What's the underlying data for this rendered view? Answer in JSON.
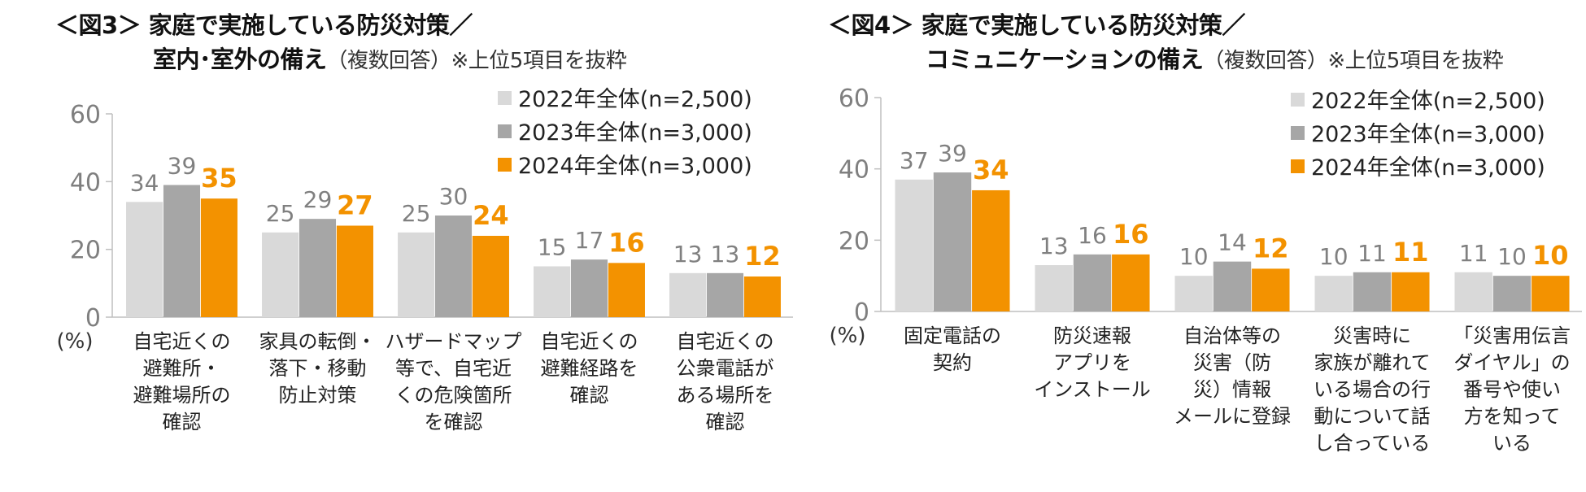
{
  "chart_data": [
    {
      "type": "bar",
      "title_line1": "＜図3＞ 家庭で実施している防災対策／",
      "title_line2": "室内･室外の備え",
      "title_note": "（複数回答）※上位5項目を抜粋",
      "unit_label": "(%)",
      "ylim": [
        0,
        60
      ],
      "yticks": [
        0,
        20,
        40,
        60
      ],
      "grid": false,
      "legend_position": "top-right",
      "categories": [
        [
          "自宅近くの",
          "避難所・",
          "避難場所の",
          "確認"
        ],
        [
          "家具の転倒・",
          "落下・移動",
          "防止対策"
        ],
        [
          "ハザードマップ",
          "等で、自宅近",
          "くの危険箇所",
          "を確認"
        ],
        [
          "自宅近くの",
          "避難経路を",
          "確認"
        ],
        [
          "自宅近くの",
          "公衆電話が",
          "ある場所を",
          "確認"
        ]
      ],
      "series": [
        {
          "name": "2022年全体(n=2,500)",
          "color": "#d9d9d9",
          "label_color": "#808080",
          "bold": false,
          "values": [
            34,
            25,
            25,
            15,
            13
          ]
        },
        {
          "name": "2023年全体(n=3,000)",
          "color": "#a6a6a6",
          "label_color": "#808080",
          "bold": false,
          "values": [
            39,
            29,
            30,
            17,
            13
          ]
        },
        {
          "name": "2024年全体(n=3,000)",
          "color": "#f39200",
          "label_color": "#f39200",
          "bold": true,
          "values": [
            35,
            27,
            24,
            16,
            12
          ]
        }
      ]
    },
    {
      "type": "bar",
      "title_line1": "＜図4＞ 家庭で実施している防災対策／",
      "title_line2": "コミュニケーションの備え",
      "title_note": "（複数回答）※上位5項目を抜粋",
      "unit_label": "(%)",
      "ylim": [
        0,
        60
      ],
      "yticks": [
        0,
        20,
        40,
        60
      ],
      "grid": false,
      "legend_position": "top-right",
      "categories": [
        [
          "固定電話の",
          "契約"
        ],
        [
          "防災速報",
          "アプリを",
          "インストール"
        ],
        [
          "自治体等の",
          "災害（防",
          "災）情報",
          "メールに登録"
        ],
        [
          "災害時に",
          "家族が離れて",
          "いる場合の行",
          "動について話",
          "し合っている"
        ],
        [
          "「災害用伝言",
          "ダイヤル」の",
          "番号や使い",
          "方を知って",
          "いる"
        ]
      ],
      "series": [
        {
          "name": "2022年全体(n=2,500)",
          "color": "#d9d9d9",
          "label_color": "#808080",
          "bold": false,
          "values": [
            37,
            13,
            10,
            10,
            11
          ]
        },
        {
          "name": "2023年全体(n=3,000)",
          "color": "#a6a6a6",
          "label_color": "#808080",
          "bold": false,
          "values": [
            39,
            16,
            14,
            11,
            10
          ]
        },
        {
          "name": "2024年全体(n=3,000)",
          "color": "#f39200",
          "label_color": "#f39200",
          "bold": true,
          "values": [
            34,
            16,
            12,
            11,
            10
          ]
        }
      ]
    }
  ]
}
